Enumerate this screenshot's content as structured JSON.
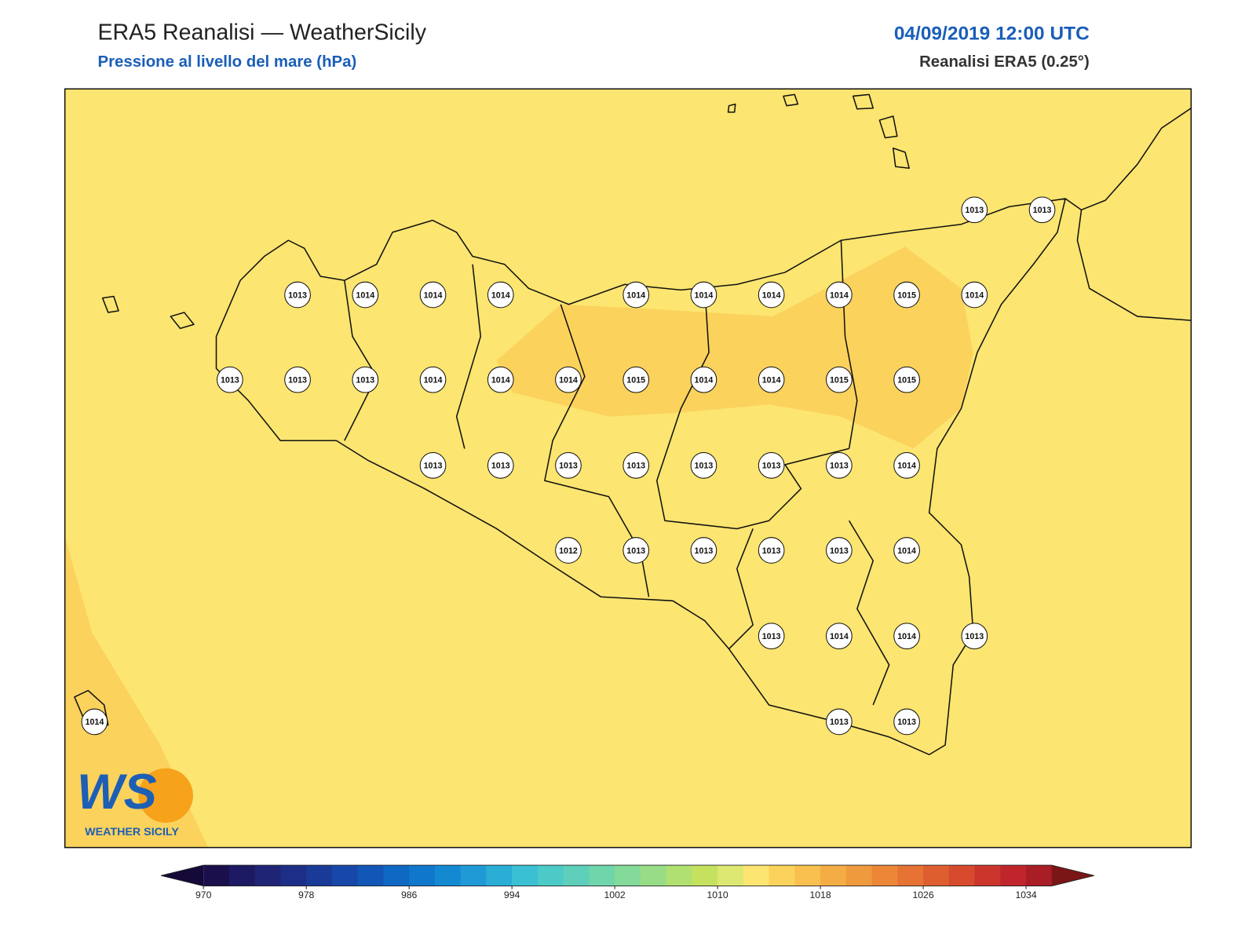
{
  "header": {
    "title": "ERA5 Reanalisi — WeatherSicily",
    "subtitle": "Pressione al livello del mare (hPa)",
    "date": "04/09/2019 12:00 UTC",
    "source": "Reanalisi ERA5 (0.25°)"
  },
  "stations": {
    "rows": [
      [
        null,
        null,
        null,
        null,
        null,
        null,
        null,
        null,
        null,
        null,
        null,
        null,
        null,
        1013,
        1013
      ],
      [
        null,
        null,
        null,
        1013,
        1014,
        1014,
        1014,
        null,
        1014,
        1014,
        1014,
        1014,
        1015,
        1014,
        null
      ],
      [
        null,
        null,
        1013,
        1013,
        1013,
        1014,
        1014,
        1014,
        1015,
        1014,
        1014,
        1015,
        1015,
        null,
        null
      ],
      [
        null,
        null,
        null,
        null,
        null,
        1013,
        1013,
        1013,
        1013,
        1013,
        1013,
        1013,
        1014,
        null,
        null
      ],
      [
        null,
        null,
        null,
        null,
        null,
        null,
        null,
        1012,
        1013,
        1013,
        1013,
        1013,
        1014,
        null,
        null
      ],
      [
        null,
        null,
        null,
        null,
        null,
        null,
        null,
        null,
        null,
        null,
        1013,
        1014,
        1014,
        1013,
        null
      ],
      [
        1014,
        null,
        null,
        null,
        null,
        null,
        null,
        null,
        null,
        null,
        null,
        1013,
        1013,
        null,
        null
      ]
    ]
  },
  "colorbar": {
    "lim": [
      970,
      1036
    ],
    "ticks": [
      970,
      978,
      986,
      994,
      1002,
      1010,
      1018,
      1026,
      1034
    ],
    "colors": [
      "#1a0f4a",
      "#1d1a63",
      "#1f2474",
      "#1d2e86",
      "#1a3a97",
      "#1747a8",
      "#1256b8",
      "#0f67c4",
      "#0f78cc",
      "#1389d2",
      "#1f9ad6",
      "#2aaed6",
      "#3ac0d2",
      "#4ccac8",
      "#5ecfbb",
      "#6fd5ab",
      "#84da98",
      "#98dd86",
      "#b0e070",
      "#c5e25f",
      "#dde872",
      "#fce570",
      "#fbd25c",
      "#f7c04f",
      "#f4ac45",
      "#f09a3e",
      "#ec8738",
      "#e67234",
      "#df5e30",
      "#d74a2d",
      "#cc352b",
      "#bf252a",
      "#a81d26"
    ],
    "under": "#15093a",
    "over": "#7a1616"
  },
  "logo": {
    "mark": "WS",
    "text": "WEATHER SICILY"
  }
}
